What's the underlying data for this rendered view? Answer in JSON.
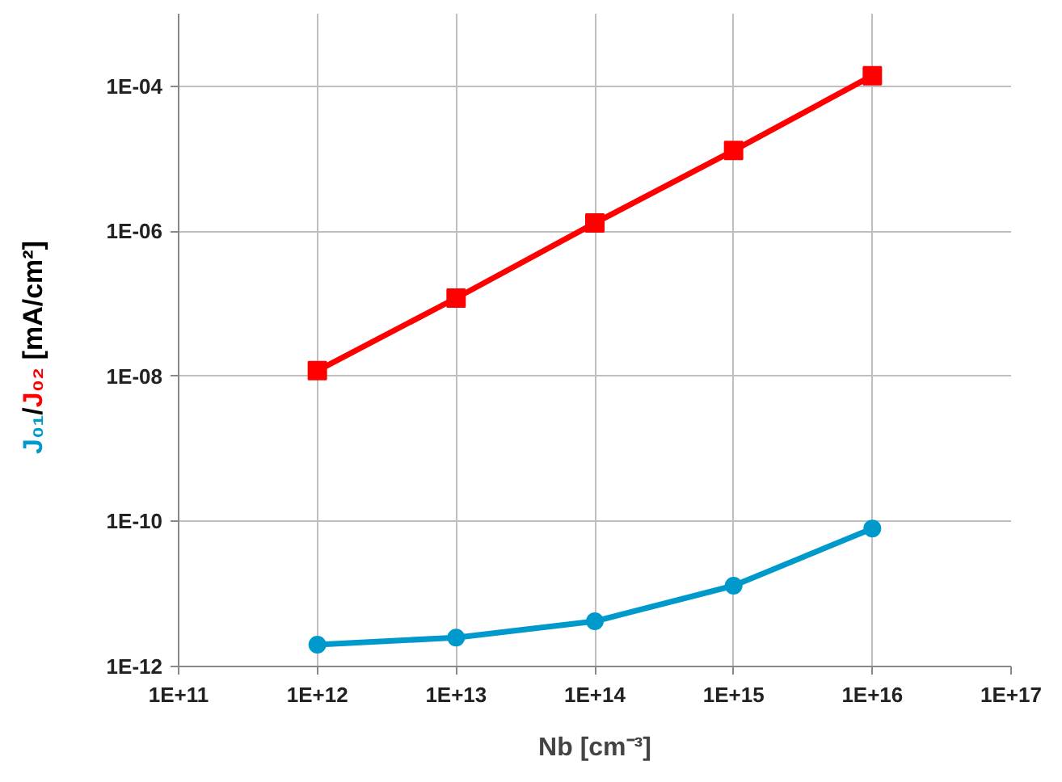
{
  "chart_data": {
    "type": "line",
    "xlabel": "Nb [cm⁻³]",
    "ylabel": "J₀₁/J₀₂ [mA/cm²]",
    "log": "xy",
    "grid": true,
    "line_style": "solid",
    "x": [
      1000000000000.0,
      10000000000000.0,
      100000000000000.0,
      1000000000000000.0,
      1e+16
    ],
    "xlim": [
      100000000000.0,
      1e+17
    ],
    "xticks": [
      {
        "value": 100000000000.0,
        "label": "1E+11"
      },
      {
        "value": 1000000000000.0,
        "label": "1E+12"
      },
      {
        "value": 10000000000000.0,
        "label": "1E+13"
      },
      {
        "value": 100000000000000.0,
        "label": "1E+14"
      },
      {
        "value": 1000000000000000.0,
        "label": "1E+15"
      },
      {
        "value": 1e+16,
        "label": "1E+16"
      },
      {
        "value": 1e+17,
        "label": "1E+17"
      }
    ],
    "ylim": [
      1e-12,
      0.001
    ],
    "yticks": [
      {
        "value": 1e-12,
        "label": "1E-12"
      },
      {
        "value": 1e-10,
        "label": "1E-10"
      },
      {
        "value": 1e-08,
        "label": "1E-08"
      },
      {
        "value": 1e-06,
        "label": "1E-06"
      },
      {
        "value": 0.0001,
        "label": "1E-04"
      }
    ],
    "series": [
      {
        "color": "#0099cc",
        "marker": "circle",
        "values": [
          2e-12,
          2.5e-12,
          4.2e-12,
          1.3e-11,
          8e-11
        ]
      },
      {
        "color": "#ff0000",
        "marker": "square",
        "values": [
          1.2e-08,
          1.2e-07,
          1.3e-06,
          1.3e-05,
          0.00014
        ]
      }
    ]
  }
}
